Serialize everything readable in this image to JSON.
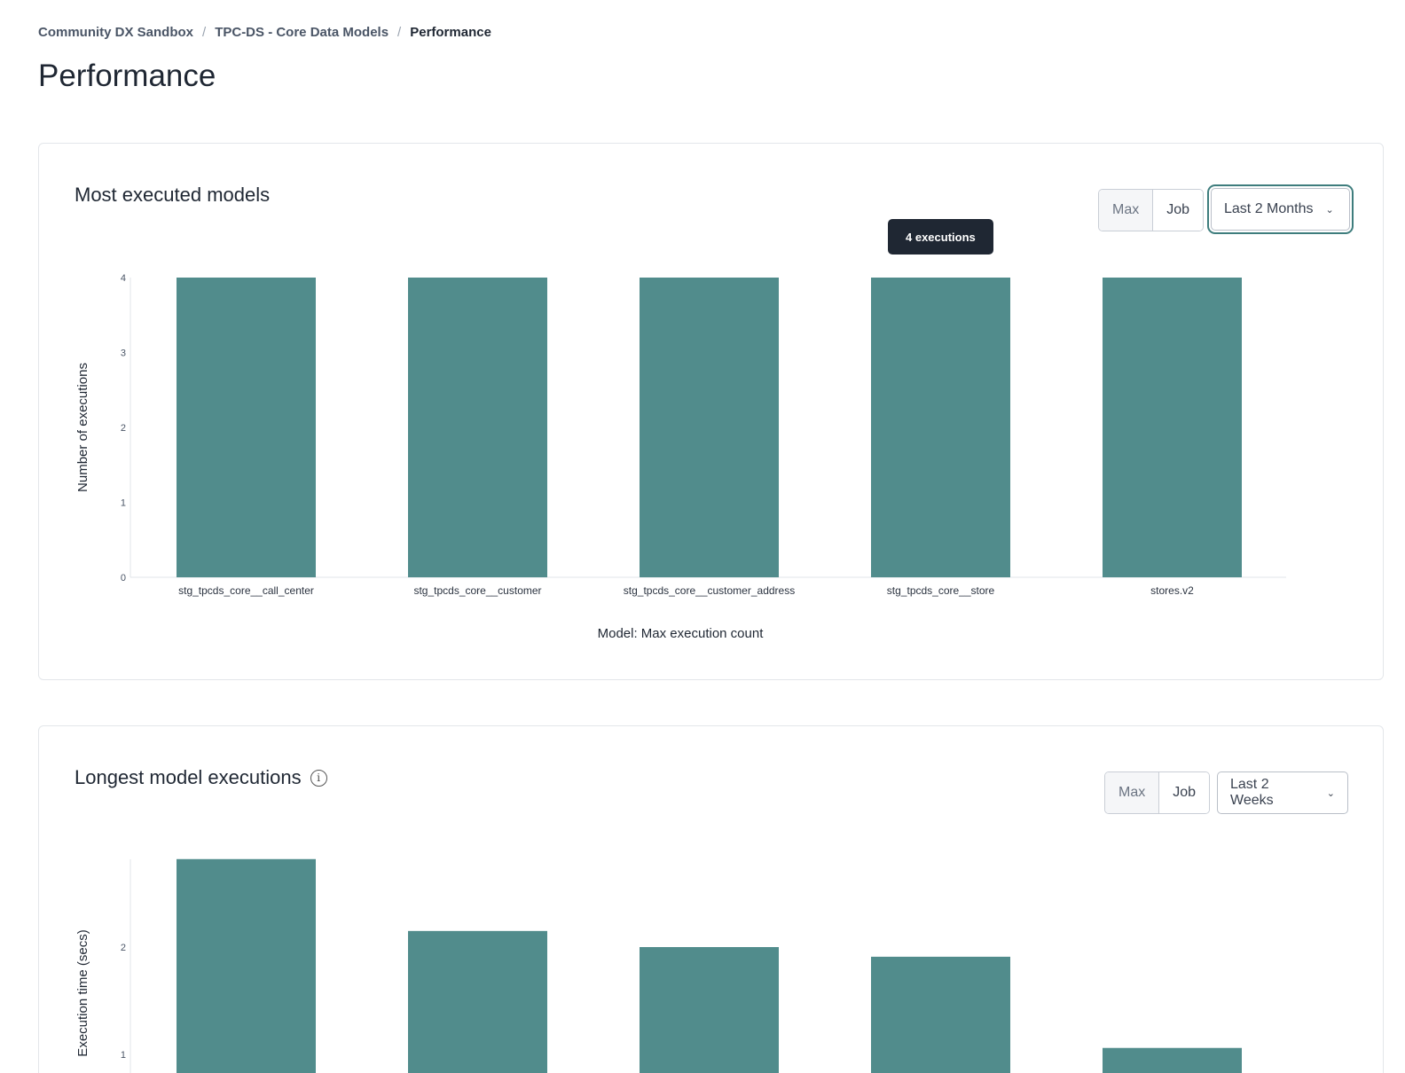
{
  "breadcrumb": [
    "Community DX Sandbox",
    "TPC-DS - Core Data Models",
    "Performance"
  ],
  "page_title": "Performance",
  "accent_color": "#518c8c",
  "cards": [
    {
      "title": "Most executed models",
      "toggle": {
        "max_label": "Max",
        "job_label": "Job",
        "selected": "Job"
      },
      "range_label": "Last 2 Months",
      "tooltip": "4 executions",
      "chart_data": {
        "type": "bar",
        "categories": [
          "stg_tpcds_core__call_center",
          "stg_tpcds_core__customer",
          "stg_tpcds_core__customer_address",
          "stg_tpcds_core__store",
          "stores.v2"
        ],
        "values": [
          4,
          4,
          4,
          4,
          4
        ],
        "xlabel": "Model: Max execution count",
        "ylabel": "Number of executions",
        "ylim": [
          0,
          4
        ],
        "yticks": [
          0,
          1,
          2,
          3,
          4
        ],
        "grid": false
      }
    },
    {
      "title": "Longest model executions",
      "toggle": {
        "max_label": "Max",
        "job_label": "Job",
        "selected": "Job"
      },
      "range_label": "Last 2 Weeks",
      "chart_data": {
        "type": "bar",
        "values": [
          2.82,
          2.15,
          2.0,
          1.91,
          1.06
        ],
        "ylabel": "Execution time (secs)",
        "yticks": [
          1,
          2
        ],
        "grid": false
      }
    }
  ]
}
